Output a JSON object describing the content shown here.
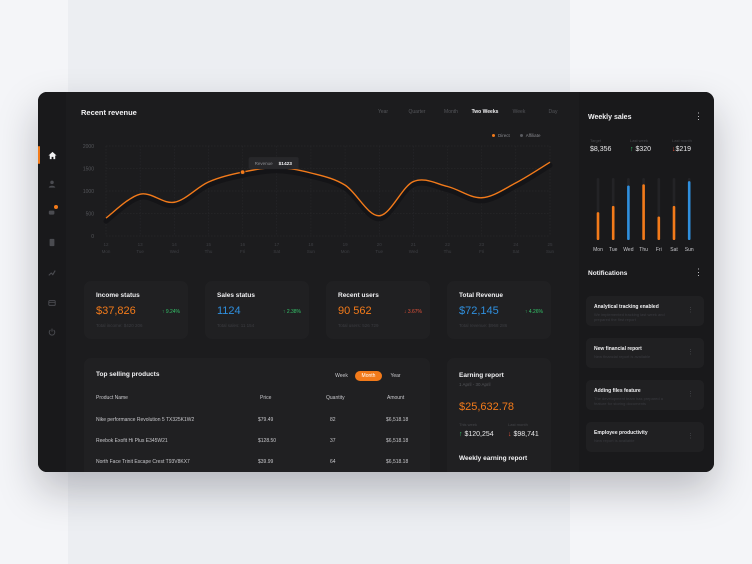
{
  "nav": {
    "items": [
      "home-icon",
      "user-icon",
      "chat-icon",
      "document-icon",
      "chart-icon",
      "archive-icon",
      "power-icon"
    ]
  },
  "revenue": {
    "title": "Recent revenue",
    "periods": [
      "Year",
      "Quarter",
      "Month",
      "Two Weeks",
      "Week",
      "Day"
    ],
    "active_period": "Two Weeks",
    "legend": [
      {
        "name": "Direct",
        "color": "#f27a1a"
      },
      {
        "name": "Affiliate",
        "color": "#5a5b60"
      }
    ],
    "tooltip": {
      "label": "Revenue",
      "value": "$1423"
    }
  },
  "chart_data": {
    "type": "line",
    "x": [
      "12\nMon",
      "13\nTue",
      "14\nWed",
      "15\nThu",
      "16\nFri",
      "17\nSat",
      "18\nSun",
      "19\nMon",
      "20\nTue",
      "21\nWed",
      "22\nThu",
      "23\nFri",
      "24\nSat",
      "25\nSun"
    ],
    "x_days": [
      "12",
      "13",
      "14",
      "15",
      "16",
      "17",
      "18",
      "19",
      "20",
      "21",
      "22",
      "23",
      "24",
      "25"
    ],
    "x_weekdays": [
      "Mon",
      "Tue",
      "Wed",
      "Thu",
      "Fri",
      "Sat",
      "Sun",
      "Mon",
      "Tue",
      "Wed",
      "Thu",
      "Fri",
      "Sat",
      "Sun"
    ],
    "y_ticks": [
      0,
      500,
      1000,
      1500,
      2000
    ],
    "ylim": [
      0,
      2000
    ],
    "series": [
      {
        "name": "Direct",
        "values": [
          400,
          930,
          750,
          1200,
          1420,
          1520,
          1400,
          1130,
          450,
          1210,
          1100,
          850,
          1180,
          1640
        ],
        "color": "#f27a1a"
      },
      {
        "name": "Affiliate",
        "values": [
          330,
          860,
          680,
          1130,
          1350,
          1450,
          1330,
          1060,
          380,
          1140,
          1030,
          780,
          1110,
          1570
        ],
        "color": "#141416"
      }
    ],
    "grid": true
  },
  "weekly_sales": {
    "title": "Weekly sales",
    "stats": [
      {
        "label": "Target",
        "value": "$8,356",
        "color": "#e8e8ea",
        "arrow": ""
      },
      {
        "label": "Last week",
        "value": "$320",
        "color": "#e8e8ea",
        "arrow": "↑"
      },
      {
        "label": "Last month",
        "value": "$219",
        "color": "#e8e8ea",
        "arrow": "↓"
      }
    ],
    "days": [
      "Mon",
      "Tue",
      "Wed",
      "Thu",
      "Fri",
      "Sat",
      "Sun"
    ],
    "bars": [
      {
        "value": 0.45,
        "color": "#f27a1a"
      },
      {
        "value": 0.55,
        "color": "#f27a1a"
      },
      {
        "value": 0.88,
        "color": "#2f8fde"
      },
      {
        "value": 0.9,
        "color": "#f27a1a"
      },
      {
        "value": 0.38,
        "color": "#f27a1a"
      },
      {
        "value": 0.55,
        "color": "#f27a1a"
      },
      {
        "value": 0.95,
        "color": "#2f8fde"
      }
    ]
  },
  "cards": [
    {
      "title": "Income status",
      "value": "$37,826",
      "value_color": "#f27a1a",
      "change": "9.24%",
      "arrow": "↑",
      "change_color": "#34c46a",
      "sub": "Total income: $420 206"
    },
    {
      "title": "Sales status",
      "value": "1124",
      "value_color": "#2f8fde",
      "change": "2.38%",
      "arrow": "↑",
      "change_color": "#34c46a",
      "sub": "Total sales: 11 154"
    },
    {
      "title": "Recent users",
      "value": "90 562",
      "value_color": "#f27a1a",
      "change": "3.67%",
      "arrow": "↓",
      "change_color": "#e5523a",
      "sub": "Total users: 526 729"
    },
    {
      "title": "Total Revenue",
      "value": "$72,145",
      "value_color": "#2f8fde",
      "change": "4.26%",
      "arrow": "↑",
      "change_color": "#34c46a",
      "sub": "Total revenue: $968 286"
    }
  ],
  "products": {
    "title": "Top selling products",
    "tabs": [
      "Week",
      "Month",
      "Year"
    ],
    "active_tab": "Month",
    "columns": [
      "Product Name",
      "Price",
      "Quantity",
      "Amount"
    ],
    "rows": [
      [
        "Nike performance Revolution 5 TX325K1W2",
        "$79.49",
        "82",
        "$6,518.18"
      ],
      [
        "Reebok Exofit Hi Plus E345W21",
        "$128.50",
        "37",
        "$6,518.18"
      ],
      [
        "North Face Trinit Escape Crest T93V8KX7",
        "$39.99",
        "64",
        "$6,518.18"
      ]
    ]
  },
  "earning": {
    "title": "Earning report",
    "date": "1 April - 30 April",
    "value": "$25,632.78",
    "stats": [
      {
        "label": "This week",
        "value": "$120,254",
        "arrow": "↑",
        "arrow_color": "#34c46a"
      },
      {
        "label": "Last month",
        "value": "$98,741",
        "arrow": "↓",
        "arrow_color": "#e5523a"
      }
    ],
    "weekly_title": "Weekly earning report"
  },
  "notifications": {
    "title": "Notifications",
    "items": [
      {
        "title": "Analytical tracking enabled",
        "sub": "We implemented tracking last week and prepared the first report"
      },
      {
        "title": "New financial report",
        "sub": "New financial report is available"
      },
      {
        "title": "Adding files feature",
        "sub": "The development team has prepared a feature for storing documents"
      },
      {
        "title": "Employee productivity",
        "sub": "New report is available"
      }
    ]
  }
}
